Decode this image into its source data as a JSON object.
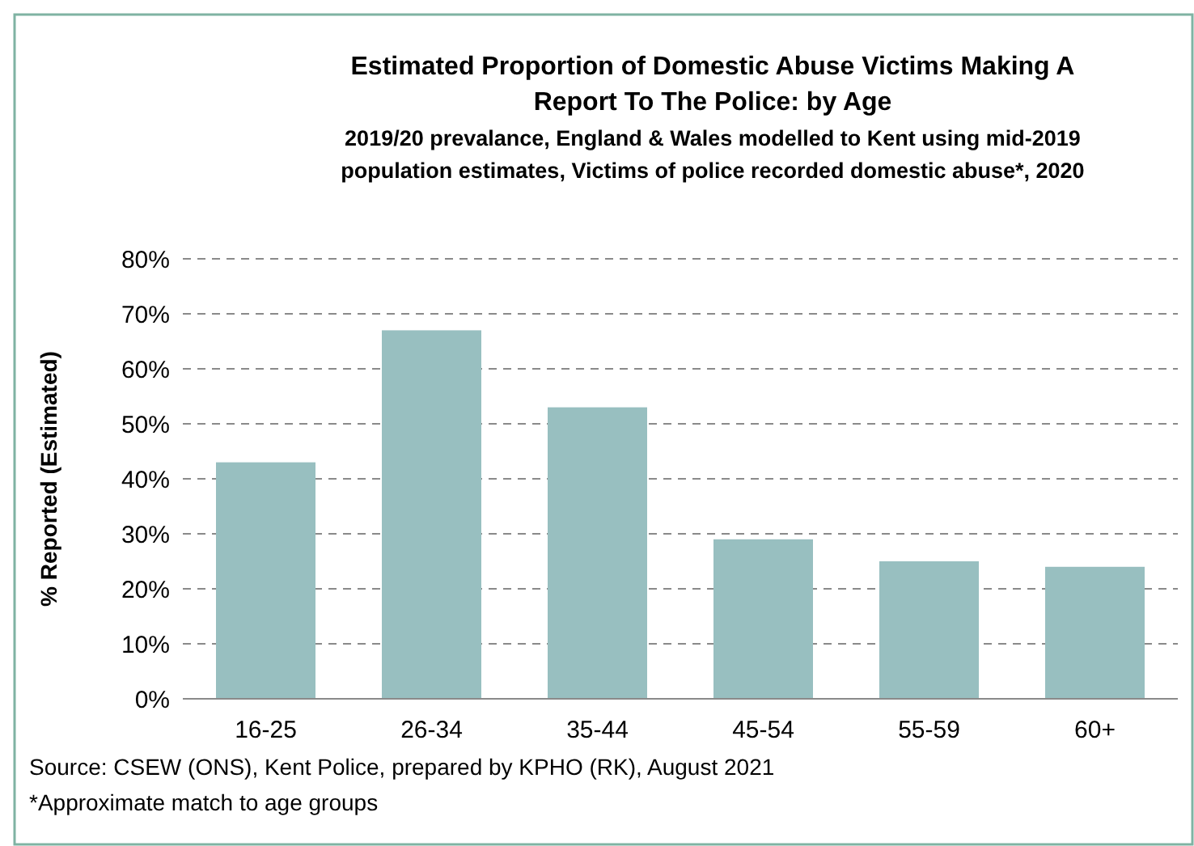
{
  "chart_data": {
    "type": "bar",
    "title": "Estimated Proportion of Domestic Abuse Victims Making A Report To The Police: by Age",
    "subtitle": "2019/20 prevalance, England & Wales modelled to Kent using mid-2019 population estimates, Victims of police recorded domestic abuse*, 2020",
    "ylabel": "% Reported (Estimated)",
    "categories": [
      "16-25",
      "26-34",
      "35-44",
      "45-54",
      "55-59",
      "60+"
    ],
    "values": [
      43,
      67,
      53,
      29,
      25,
      24
    ],
    "color": "#98bfc0",
    "ylim": [
      0,
      80
    ],
    "yticks": [
      {
        "value": 0,
        "label": "0%"
      },
      {
        "value": 10,
        "label": "10%"
      },
      {
        "value": 20,
        "label": "20%"
      },
      {
        "value": 30,
        "label": "30%"
      },
      {
        "value": 40,
        "label": "40%"
      },
      {
        "value": 50,
        "label": "50%"
      },
      {
        "value": 60,
        "label": "60%"
      },
      {
        "value": 70,
        "label": "70%"
      },
      {
        "value": 80,
        "label": "80%"
      }
    ],
    "grid": "y",
    "annotations": [
      "Source: CSEW (ONS), Kent Police, prepared by KPHO (RK), August 2021",
      "*Approximate match to age groups"
    ]
  }
}
